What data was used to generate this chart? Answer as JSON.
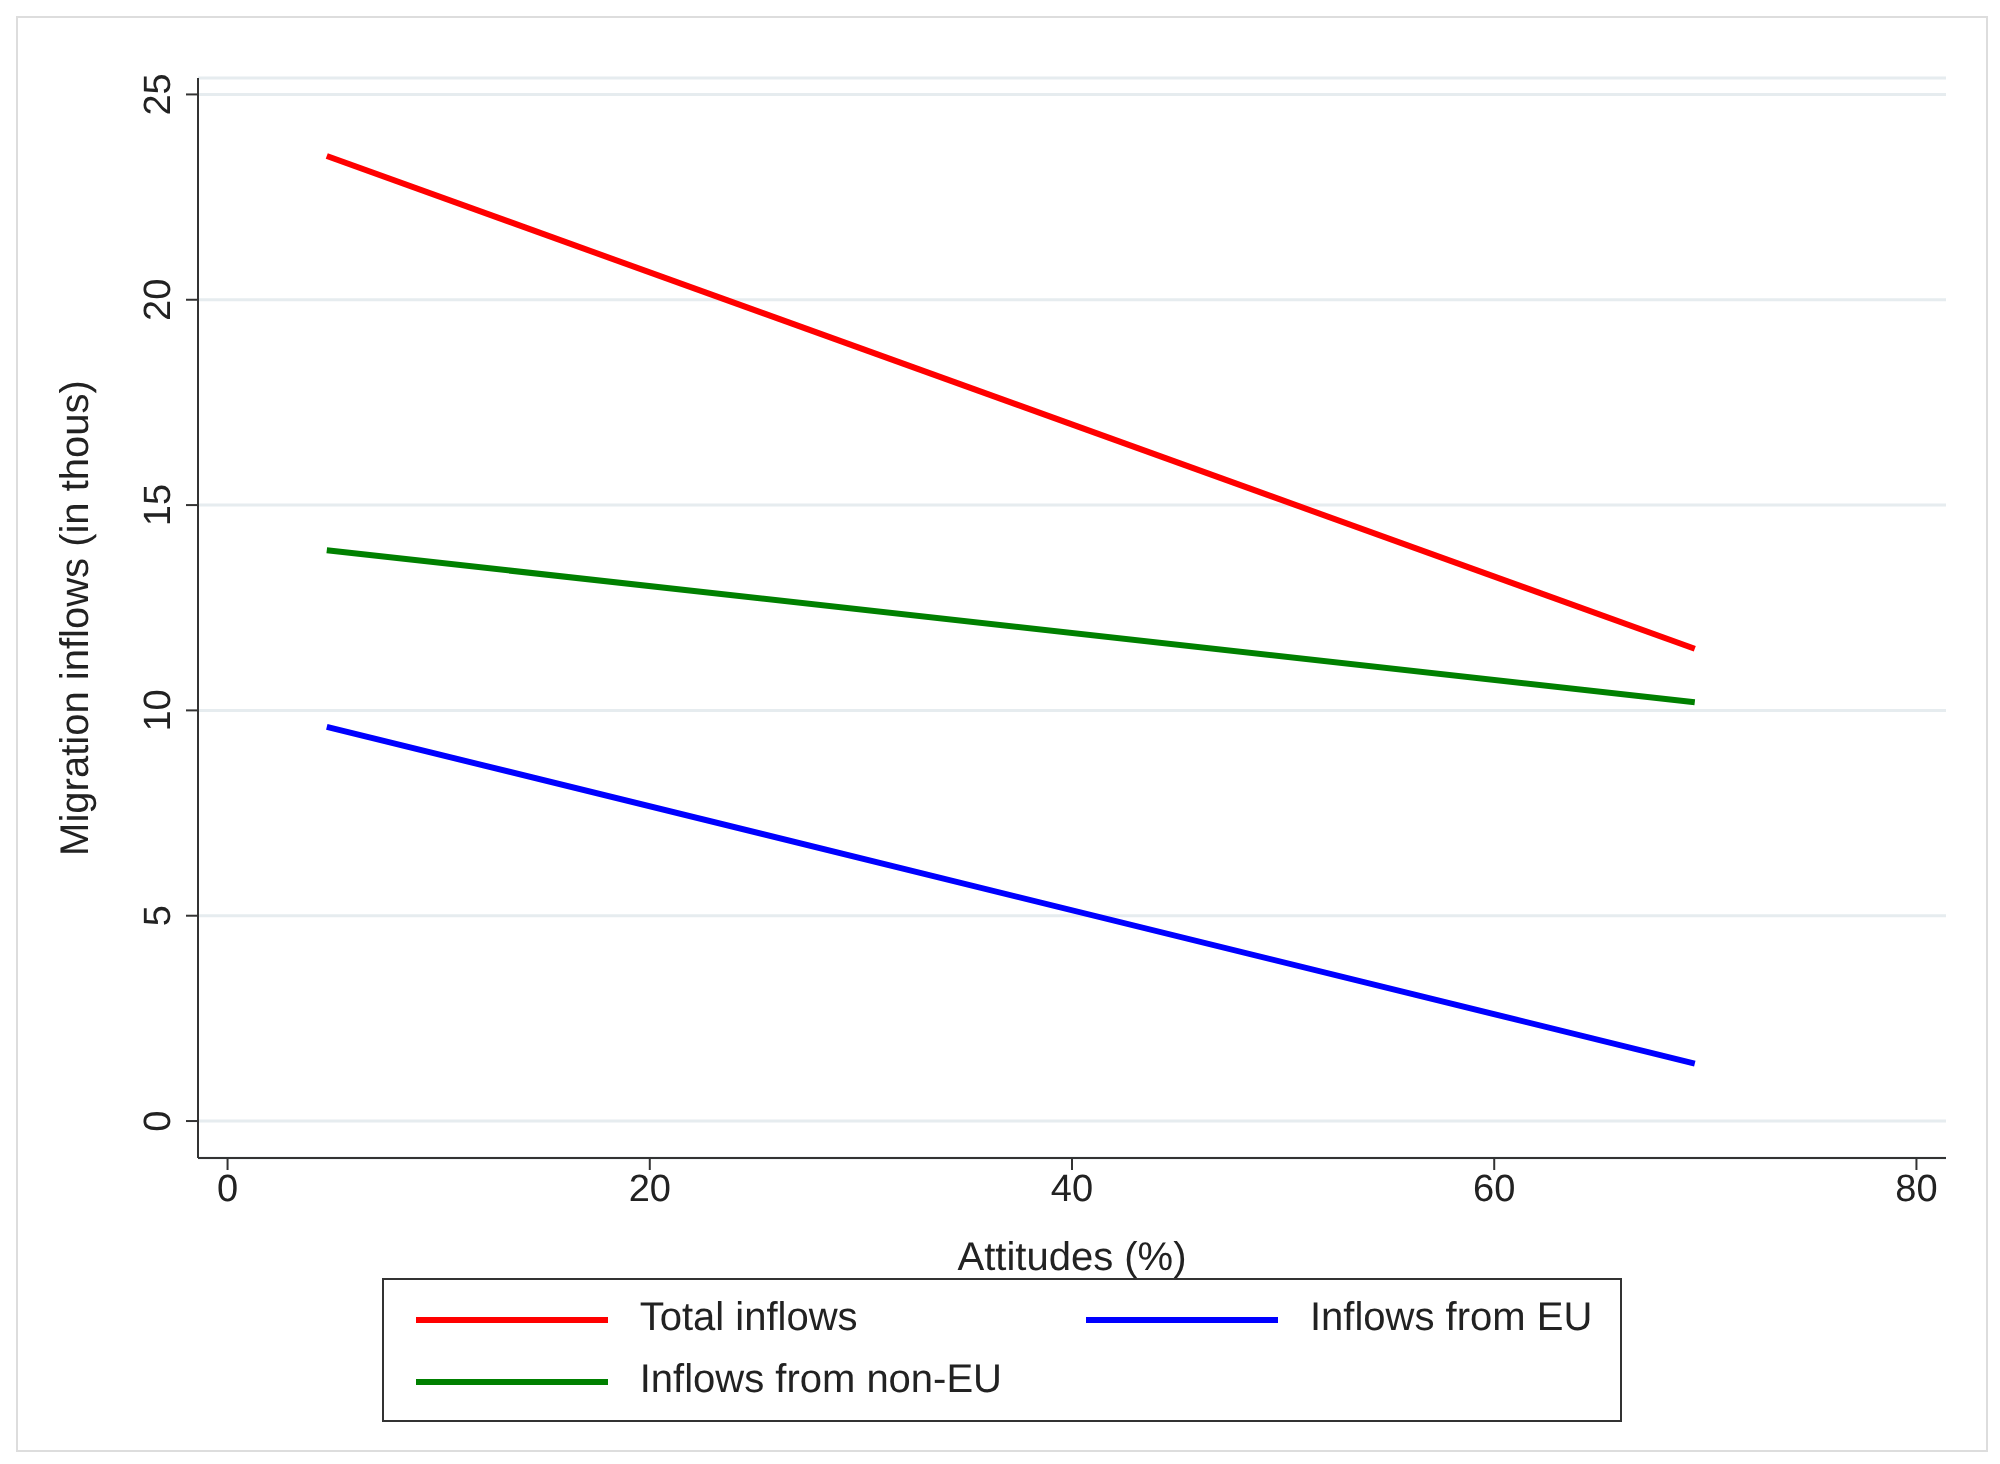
{
  "chart_data": {
    "type": "line",
    "xlabel": "Attitudes (%)",
    "ylabel": "Migration inflows (in thous)",
    "x": [
      4.7,
      69.5
    ],
    "series": [
      {
        "name": "Total inflows",
        "color": "#ff0000",
        "values": [
          23.5,
          11.5
        ]
      },
      {
        "name": "Inflows from EU",
        "color": "#0000ff",
        "values": [
          9.6,
          1.4
        ]
      },
      {
        "name": "Inflows from non-EU",
        "color": "#008000",
        "values": [
          13.9,
          10.2
        ]
      }
    ],
    "xlim": [
      -1.4,
      81.4
    ],
    "xticks": [
      0,
      20,
      40,
      60,
      80
    ],
    "ylim": [
      -0.9,
      25.4
    ],
    "yticks": [
      0,
      5,
      10,
      15,
      20,
      25
    ],
    "grid": "y",
    "legend": "bottom",
    "marker": "none",
    "line_style": "solid"
  }
}
